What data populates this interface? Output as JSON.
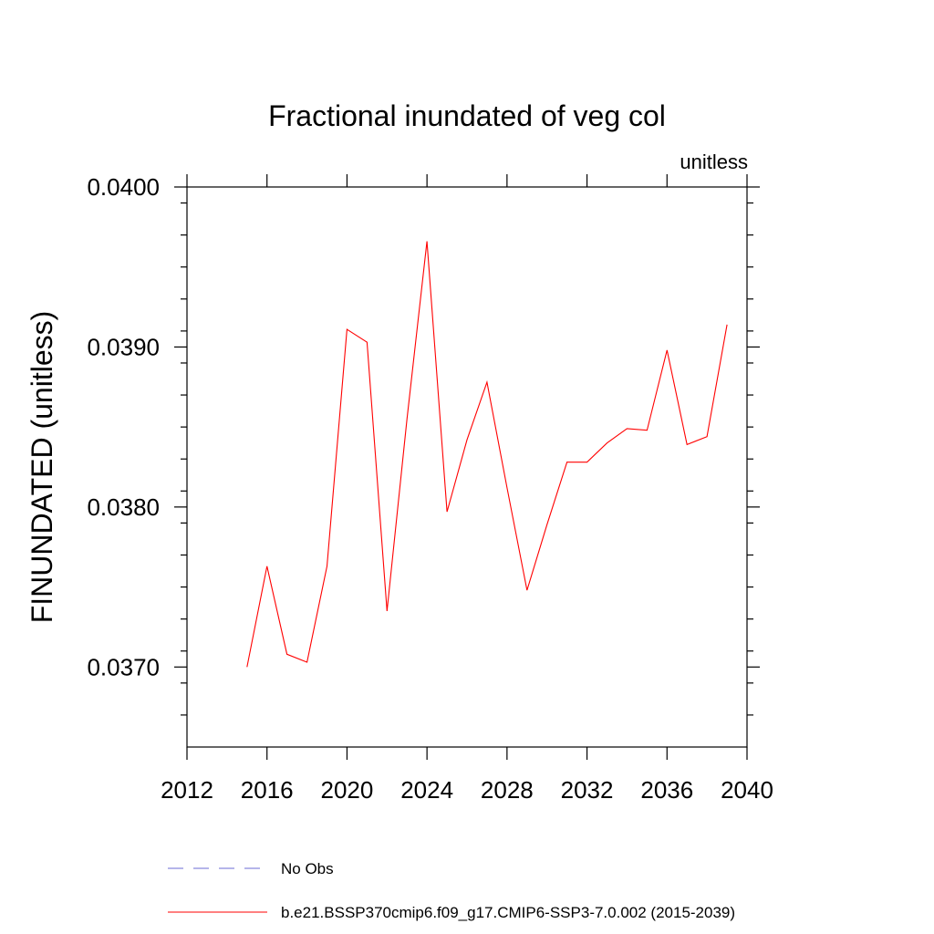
{
  "chart_data": {
    "type": "line",
    "title": "Fractional inundated of veg col",
    "units_label": "unitless",
    "xlabel": "",
    "ylabel": "FINUNDATED  (unitless)",
    "xlim": [
      2012,
      2040
    ],
    "ylim": [
      0.0365,
      0.04
    ],
    "x_ticks": [
      2012,
      2016,
      2020,
      2024,
      2028,
      2032,
      2036,
      2040
    ],
    "x_tick_labels": [
      "2012",
      "2016",
      "2020",
      "2024",
      "2028",
      "2032",
      "2036",
      "2040"
    ],
    "y_ticks": [
      0.037,
      0.038,
      0.039,
      0.04
    ],
    "y_tick_labels": [
      "0.0370",
      "0.0380",
      "0.0390",
      "0.0400"
    ],
    "grid": false,
    "legend_position": "bottom",
    "series": [
      {
        "name": "b.e21.BSSP370cmip6.f09_g17.CMIP6-SSP3-7.0.002 (2015-2039)",
        "color": "#ff0000",
        "style": "solid",
        "x": [
          2015,
          2016,
          2017,
          2018,
          2019,
          2020,
          2021,
          2022,
          2023,
          2024,
          2025,
          2026,
          2027,
          2028,
          2029,
          2030,
          2031,
          2032,
          2033,
          2034,
          2035,
          2036,
          2037,
          2038,
          2039
        ],
        "values": [
          0.037,
          0.03763,
          0.03708,
          0.03703,
          0.03763,
          0.03911,
          0.03903,
          0.03735,
          0.03855,
          0.03966,
          0.03797,
          0.03842,
          0.03878,
          0.03812,
          0.03748,
          0.03789,
          0.03828,
          0.03828,
          0.0384,
          0.03849,
          0.03848,
          0.03898,
          0.03839,
          0.03844,
          0.03914
        ]
      }
    ],
    "legend": [
      {
        "label": "No Obs",
        "color": "#6b6bd6",
        "style": "dashed"
      },
      {
        "label": "b.e21.BSSP370cmip6.f09_g17.CMIP6-SSP3-7.0.002 (2015-2039)",
        "color": "#ff0000",
        "style": "solid"
      }
    ]
  }
}
